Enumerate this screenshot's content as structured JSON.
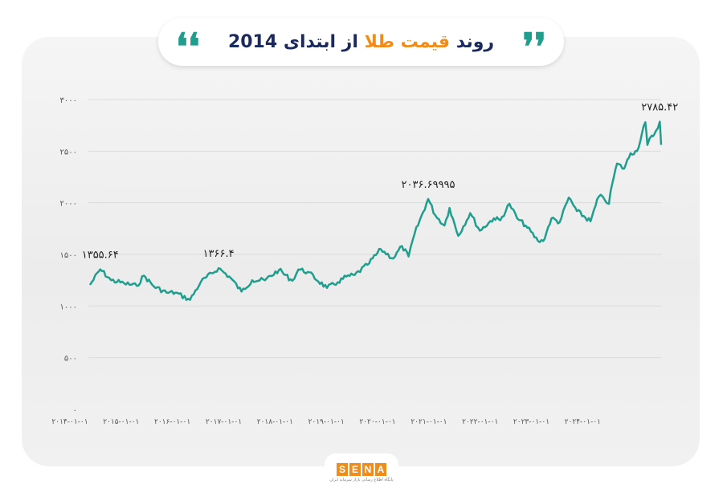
{
  "header": {
    "title_part1": "روند",
    "title_part2": "قیمت طلا",
    "title_part3": "از ابتدای 2014",
    "open_quote": "❛❛",
    "close_quote": "❜❜"
  },
  "logo": {
    "letters": [
      "S",
      "E",
      "N",
      "A"
    ],
    "subtitle": "پایگاه اطلاع رسانی بازار سرمایه ایران"
  },
  "colors": {
    "line": "#1f9e8e",
    "accent": "#f28c18",
    "navy": "#1b2a5e"
  },
  "chart_data": {
    "type": "line",
    "title": "روند قیمت طلا از ابتدای 2014",
    "xlabel": "",
    "ylabel": "",
    "ylim": [
      0,
      3000
    ],
    "y_ticks": [
      0,
      500,
      1000,
      1500,
      2000,
      2500,
      3000
    ],
    "y_tick_labels": [
      "۰",
      "۵۰۰",
      "۱۰۰۰",
      "۱۵۰۰",
      "۲۰۰۰",
      "۲۵۰۰",
      "۳۰۰۰"
    ],
    "x_range": [
      "2014-01-01",
      "2025-02-20"
    ],
    "x_tick_dates": [
      "2014-01-01",
      "2015-01-01",
      "2016-01-01",
      "2017-01-01",
      "2018-01-01",
      "2019-01-01",
      "2020-01-01",
      "2021-01-01",
      "2022-01-01",
      "2023-01-01",
      "2024-01-01"
    ],
    "x_tick_labels": [
      "۲۰۱۴-۰۱-۰۱",
      "۲۰۱۵-۰۱-۰۱",
      "۲۰۱۶-۰۱-۰۱",
      "۲۰۱۷-۰۱-۰۱",
      "۲۰۱۸-۰۱-۰۱",
      "۲۰۱۹-۰۱-۰۱",
      "۲۰۲۰-۰۱-۰۱",
      "۲۰۲۱-۰۱-۰۱",
      "۲۰۲۲-۰۱-۰۱",
      "۲۰۲۳-۰۱-۰۱",
      "۲۰۲۴-۰۱-۰۱"
    ],
    "grid": true,
    "legend": "none",
    "x": [
      "2014-01-01",
      "2014-03-15",
      "2014-06-01",
      "2014-09-01",
      "2014-12-01",
      "2015-01-20",
      "2015-04-01",
      "2015-07-01",
      "2015-09-01",
      "2015-12-15",
      "2016-03-01",
      "2016-07-05",
      "2016-10-01",
      "2016-12-15",
      "2017-03-01",
      "2017-06-01",
      "2017-09-08",
      "2017-12-12",
      "2018-01-25",
      "2018-04-01",
      "2018-08-16",
      "2018-11-01",
      "2019-01-01",
      "2019-03-01",
      "2019-06-01",
      "2019-09-04",
      "2019-12-01",
      "2020-02-01",
      "2020-03-19",
      "2020-05-01",
      "2020-08-06",
      "2020-09-25",
      "2020-11-30",
      "2021-01-05",
      "2021-03-08",
      "2021-06-01",
      "2021-08-09",
      "2021-11-16",
      "2022-01-01",
      "2022-03-08",
      "2022-05-01",
      "2022-07-01",
      "2022-09-27",
      "2022-11-03",
      "2023-01-01",
      "2023-02-28",
      "2023-05-04",
      "2023-07-01",
      "2023-10-06",
      "2023-12-04",
      "2024-01-01",
      "2024-02-14",
      "2024-03-08",
      "2024-04-12",
      "2024-06-01",
      "2024-07-17",
      "2024-09-01",
      "2024-10-30",
      "2024-11-14",
      "2024-12-15",
      "2025-01-01",
      "2025-02-10",
      "2025-02-20"
    ],
    "y": [
      1205,
      1355.64,
      1250,
      1220,
      1195,
      1295,
      1190,
      1130,
      1130,
      1060,
      1235,
      1366.4,
      1270,
      1140,
      1250,
      1250,
      1350,
      1245,
      1355,
      1330,
      1175,
      1230,
      1285,
      1300,
      1400,
      1550,
      1460,
      1580,
      1480,
      1700,
      2036.69995,
      1880,
      1780,
      1950,
      1680,
      1900,
      1730,
      1850,
      1830,
      1990,
      1850,
      1780,
      1630,
      1630,
      1850,
      1810,
      2050,
      1920,
      1820,
      2060,
      2060,
      1990,
      2180,
      2380,
      2330,
      2480,
      2500,
      2780,
      2560,
      2650,
      2660,
      2785.42,
      2560
    ],
    "annotations": [
      {
        "x": "2014-03-15",
        "y": 1355.64,
        "label": "۱۳۵۵.۶۴"
      },
      {
        "x": "2016-07-05",
        "y": 1366.4,
        "label": "۱۳۶۶.۴"
      },
      {
        "x": "2020-08-06",
        "y": 2036.69995,
        "label": "۲۰۳۶.۶۹۹۹۵"
      },
      {
        "x": "2025-02-10",
        "y": 2785.42,
        "label": "۲۷۸۵.۴۲"
      }
    ]
  }
}
